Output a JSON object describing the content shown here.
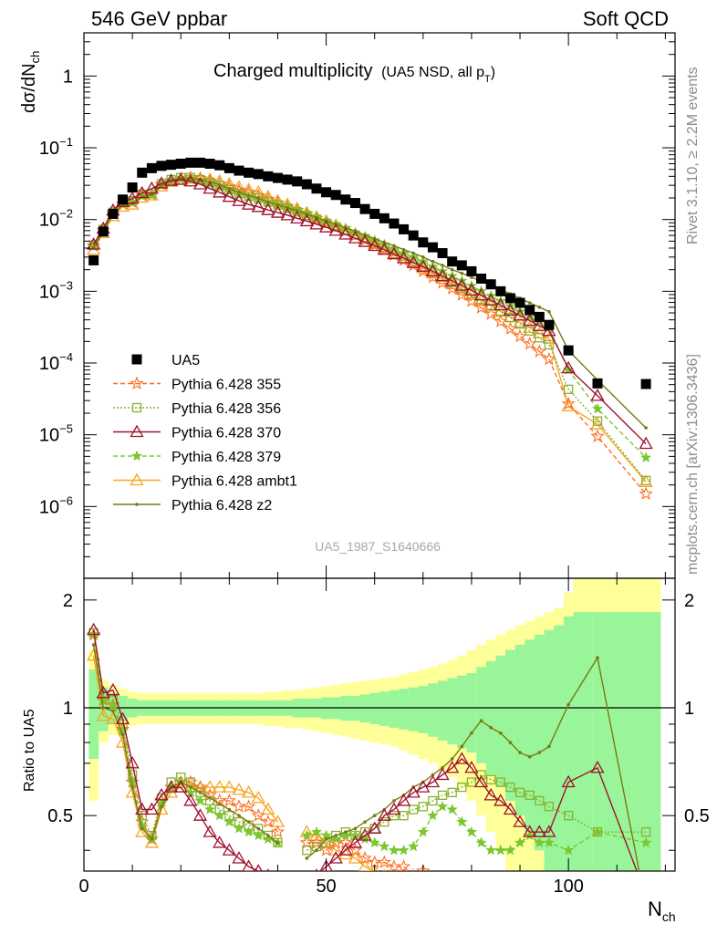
{
  "header": {
    "left": "546 GeV ppbar",
    "right": "Soft QCD",
    "side_top": "Rivet 3.1.10, ≥ 2.2M events",
    "side_bottom": "mcplots.cern.ch [arXiv:1306.3436]",
    "watermark": "UA5_1987_S1640666"
  },
  "title": {
    "main": "Charged multiplicity",
    "sub": "(UA5 NSD, all p",
    "sub_index": "T",
    "sub_close": ")"
  },
  "axes": {
    "ylabel_main": "dσ/dN",
    "ylabel_main_sub": "ch",
    "ylabel_ratio": "Ratio to UA5",
    "xlabel": "N",
    "xlabel_sub": "ch",
    "x_ticks": [
      "0",
      "50",
      "100"
    ],
    "y_ticks_main": [
      {
        "mant": "1",
        "exp": ""
      },
      {
        "mant": "10",
        "exp": "−1"
      },
      {
        "mant": "10",
        "exp": "−2"
      },
      {
        "mant": "10",
        "exp": "−3"
      },
      {
        "mant": "10",
        "exp": "−4"
      },
      {
        "mant": "10",
        "exp": "−5"
      },
      {
        "mant": "10",
        "exp": "−6"
      }
    ],
    "y_ticks_ratio": [
      "2",
      "1",
      "0.5"
    ]
  },
  "colors": {
    "data": "#000000",
    "p355": "#ff6d21",
    "p356": "#8ab030",
    "p370": "#a0112e",
    "p379": "#7ac72e",
    "ambt1": "#f5a623",
    "z2": "#7a7a12",
    "band_inner": "#99f599",
    "band_outer": "#ffff99"
  },
  "chart_data": {
    "type": "line",
    "x_range": [
      0,
      122
    ],
    "y_range_main": [
      1e-07,
      4
    ],
    "y_scale_main": "log",
    "y_range_ratio": [
      0.35,
      2.3
    ],
    "y_scale_ratio": "log",
    "legend": [
      {
        "key": "data",
        "label": "UA5"
      },
      {
        "key": "p355",
        "label": "Pythia 6.428 355"
      },
      {
        "key": "p356",
        "label": "Pythia 6.428 356"
      },
      {
        "key": "p370",
        "label": "Pythia 6.428 370"
      },
      {
        "key": "p379",
        "label": "Pythia 6.428 379"
      },
      {
        "key": "ambt1",
        "label": "Pythia 6.428 ambt1"
      },
      {
        "key": "z2",
        "label": "Pythia 6.428 z2"
      }
    ],
    "ua5": {
      "x": [
        2,
        4,
        6,
        8,
        10,
        12,
        14,
        16,
        18,
        20,
        22,
        24,
        26,
        28,
        30,
        32,
        34,
        36,
        38,
        40,
        42,
        44,
        46,
        48,
        50,
        52,
        54,
        56,
        58,
        60,
        62,
        64,
        66,
        68,
        70,
        72,
        74,
        76,
        78,
        80,
        82,
        84,
        86,
        88,
        90,
        92,
        94,
        96,
        100,
        106,
        116
      ],
      "y": [
        0.0027,
        0.0068,
        0.012,
        0.019,
        0.028,
        0.045,
        0.052,
        0.056,
        0.058,
        0.06,
        0.062,
        0.062,
        0.06,
        0.057,
        0.052,
        0.048,
        0.045,
        0.043,
        0.04,
        0.038,
        0.036,
        0.034,
        0.031,
        0.027,
        0.024,
        0.022,
        0.019,
        0.017,
        0.014,
        0.012,
        0.0104,
        0.0088,
        0.0073,
        0.006,
        0.0048,
        0.0041,
        0.0034,
        0.0026,
        0.0023,
        0.0019,
        0.0015,
        0.00125,
        0.001,
        0.0008,
        0.00069,
        0.00055,
        0.00044,
        0.00034,
        0.00015,
        5.2e-05,
        5.1e-05
      ]
    },
    "x_mc": [
      2,
      4,
      6,
      8,
      10,
      12,
      14,
      16,
      18,
      20,
      22,
      24,
      26,
      28,
      30,
      32,
      34,
      36,
      38,
      40,
      42,
      44,
      46,
      48,
      50,
      52,
      54,
      56,
      58,
      60,
      62,
      64,
      66,
      68,
      70,
      72,
      74,
      76,
      78,
      80,
      82,
      84,
      86,
      88,
      90,
      92,
      94,
      96,
      100,
      106,
      116
    ],
    "ratio_x": [
      2,
      4,
      6,
      8,
      10,
      12,
      14,
      16,
      18,
      20,
      22,
      24,
      26,
      28,
      30,
      32,
      34,
      36,
      38,
      40,
      46,
      48,
      50,
      52,
      54,
      56,
      58,
      60,
      62,
      64,
      66,
      68,
      70,
      72,
      74,
      76,
      78,
      80,
      82,
      84,
      86,
      88,
      90,
      92,
      94,
      96,
      100,
      106,
      116
    ],
    "series": {
      "p355": {
        "ratio": [
          1.6,
          1.05,
          1.02,
          0.87,
          0.62,
          0.48,
          0.43,
          0.55,
          0.6,
          0.62,
          0.62,
          0.6,
          0.57,
          0.55,
          0.55,
          0.53,
          0.53,
          0.5,
          0.48,
          0.45,
          0.42,
          0.42,
          0.4,
          0.42,
          0.42,
          0.4,
          0.38,
          0.37,
          0.37,
          0.36,
          0.36,
          0.34,
          0.35,
          0.33,
          0.33,
          0.32,
          0.31,
          0.3,
          0.3,
          0.29,
          0.28,
          0.27,
          0.27,
          0.26,
          0.25,
          0.24,
          0.22,
          0.2,
          0.18
        ],
        "y": [
          0.0043,
          0.0071,
          0.0122,
          0.0165,
          0.0174,
          0.0216,
          0.0224,
          0.0308,
          0.0348,
          0.0372,
          0.0384,
          0.0372,
          0.0342,
          0.0314,
          0.0286,
          0.0254,
          0.0239,
          0.0215,
          0.0192,
          0.0171,
          0.0151,
          0.0134,
          0.0118,
          0.0104,
          0.0091,
          0.008,
          0.0069,
          0.006,
          0.0052,
          0.0044,
          0.0038,
          0.0032,
          0.0027,
          0.0023,
          0.0019,
          0.00157,
          0.00131,
          0.00109,
          0.00089,
          0.00073,
          0.00059,
          0.00048,
          0.00038,
          0.0003,
          0.000235,
          0.000185,
          0.000145,
          0.000113,
          2.7e-05,
          9.5e-06,
          1.5e-06
        ]
      },
      "p356": {
        "ratio": [
          1.62,
          1.08,
          1.05,
          0.9,
          0.65,
          0.5,
          0.44,
          0.56,
          0.62,
          0.64,
          0.62,
          0.58,
          0.55,
          0.52,
          0.5,
          0.48,
          0.47,
          0.46,
          0.44,
          0.42,
          0.4,
          0.41,
          0.42,
          0.44,
          0.45,
          0.44,
          0.45,
          0.46,
          0.48,
          0.5,
          0.5,
          0.52,
          0.53,
          0.55,
          0.57,
          0.58,
          0.6,
          0.62,
          0.65,
          0.63,
          0.62,
          0.6,
          0.58,
          0.57,
          0.55,
          0.53,
          0.5,
          0.45,
          0.45
        ],
        "y": [
          0.0044,
          0.0073,
          0.0126,
          0.0171,
          0.0182,
          0.0225,
          0.0229,
          0.0314,
          0.036,
          0.0384,
          0.0384,
          0.036,
          0.033,
          0.0296,
          0.026,
          0.0231,
          0.0212,
          0.0198,
          0.0176,
          0.016,
          0.0144,
          0.0128,
          0.0114,
          0.0101,
          0.0089,
          0.0079,
          0.007,
          0.0061,
          0.0054,
          0.0047,
          0.0041,
          0.0036,
          0.0031,
          0.0026,
          0.0022,
          0.00186,
          0.00158,
          0.00133,
          0.00111,
          0.00093,
          0.00077,
          0.00064,
          0.00053,
          0.00043,
          0.00035,
          0.00028,
          0.000225,
          0.00018,
          4.3e-05,
          1.55e-05,
          2.3e-06
        ]
      },
      "p370": {
        "ratio": [
          1.65,
          1.1,
          1.12,
          0.93,
          0.7,
          0.52,
          0.52,
          0.57,
          0.6,
          0.6,
          0.55,
          0.5,
          0.45,
          0.42,
          0.4,
          0.38,
          0.36,
          0.35,
          0.34,
          0.33,
          0.33,
          0.34,
          0.36,
          0.38,
          0.4,
          0.42,
          0.44,
          0.46,
          0.5,
          0.52,
          0.55,
          0.58,
          0.6,
          0.62,
          0.65,
          0.68,
          0.72,
          0.68,
          0.62,
          0.57,
          0.55,
          0.52,
          0.48,
          0.45,
          0.45,
          0.45,
          0.62,
          0.68,
          0.3
        ],
        "y": [
          0.0045,
          0.0075,
          0.0134,
          0.0177,
          0.0196,
          0.0234,
          0.027,
          0.0319,
          0.0348,
          0.036,
          0.0341,
          0.031,
          0.027,
          0.0239,
          0.0208,
          0.0182,
          0.0162,
          0.015,
          0.0136,
          0.0125,
          0.0115,
          0.0104,
          0.0095,
          0.0086,
          0.0078,
          0.007,
          0.0062,
          0.0055,
          0.0049,
          0.0043,
          0.0038,
          0.0033,
          0.0029,
          0.0025,
          0.0022,
          0.0019,
          0.00163,
          0.0014,
          0.0012,
          0.00103,
          0.00088,
          0.00075,
          0.00064,
          0.00054,
          0.00046,
          0.00039,
          0.00033,
          0.00028,
          8.5e-05,
          3.5e-05,
          7.5e-06
        ]
      },
      "p379": {
        "ratio": [
          1.6,
          1.05,
          1.02,
          0.86,
          0.62,
          0.47,
          0.43,
          0.54,
          0.6,
          0.62,
          0.58,
          0.55,
          0.52,
          0.5,
          0.48,
          0.46,
          0.45,
          0.44,
          0.43,
          0.42,
          0.44,
          0.45,
          0.44,
          0.43,
          0.44,
          0.44,
          0.43,
          0.42,
          0.41,
          0.4,
          0.4,
          0.41,
          0.45,
          0.5,
          0.53,
          0.52,
          0.48,
          0.45,
          0.42,
          0.4,
          0.4,
          0.4,
          0.42,
          0.44,
          0.42,
          0.42,
          0.4,
          0.45,
          0.42
        ],
        "y": [
          0.0043,
          0.0071,
          0.0122,
          0.0163,
          0.0174,
          0.0212,
          0.0224,
          0.0302,
          0.0348,
          0.0372,
          0.036,
          0.0341,
          0.0312,
          0.0285,
          0.025,
          0.0221,
          0.0203,
          0.0189,
          0.0172,
          0.016,
          0.0147,
          0.0133,
          0.012,
          0.0107,
          0.0095,
          0.0085,
          0.0075,
          0.0066,
          0.0058,
          0.0051,
          0.0045,
          0.0039,
          0.0034,
          0.003,
          0.0026,
          0.0022,
          0.0019,
          0.00163,
          0.0014,
          0.00119,
          0.00101,
          0.00086,
          0.00073,
          0.00062,
          0.00052,
          0.00044,
          0.00037,
          0.00031,
          8e-05,
          2.3e-05,
          4.8e-06
        ]
      },
      "ambt1": {
        "ratio": [
          1.4,
          0.95,
          0.93,
          0.8,
          0.58,
          0.45,
          0.42,
          0.52,
          0.58,
          0.6,
          0.6,
          0.6,
          0.6,
          0.6,
          0.6,
          0.59,
          0.58,
          0.56,
          0.52,
          0.48,
          0.45,
          0.44,
          0.42,
          0.4,
          0.39,
          0.38,
          0.36,
          0.35,
          0.34,
          0.33,
          0.32,
          0.31,
          0.3,
          0.3,
          0.29,
          0.28,
          0.28,
          0.27,
          0.27,
          0.26,
          0.26,
          0.25,
          0.25,
          0.24,
          0.24,
          0.24,
          0.24,
          0.22,
          0.22
        ],
        "y": [
          0.0038,
          0.0065,
          0.0112,
          0.0152,
          0.0162,
          0.0203,
          0.0218,
          0.0291,
          0.0336,
          0.036,
          0.0372,
          0.0372,
          0.036,
          0.0342,
          0.0312,
          0.0283,
          0.0261,
          0.0241,
          0.0208,
          0.0182,
          0.0162,
          0.0142,
          0.0124,
          0.0108,
          0.0095,
          0.0083,
          0.0072,
          0.0062,
          0.0054,
          0.0046,
          0.004,
          0.0034,
          0.0029,
          0.0025,
          0.0021,
          0.00178,
          0.0015,
          0.00126,
          0.00106,
          0.00089,
          0.00075,
          0.00063,
          0.00052,
          0.00044,
          0.00037,
          0.00031,
          0.00026,
          0.00022,
          2.5e-05,
          1.4e-05,
          2.2e-06
        ]
      },
      "z2": {
        "ratio": [
          1.5,
          1.0,
          0.98,
          0.84,
          0.6,
          0.46,
          0.43,
          0.53,
          0.6,
          0.62,
          0.6,
          0.58,
          0.56,
          0.54,
          0.52,
          0.5,
          0.48,
          0.46,
          0.44,
          0.42,
          0.38,
          0.4,
          0.43,
          0.44,
          0.45,
          0.46,
          0.48,
          0.5,
          0.52,
          0.55,
          0.57,
          0.6,
          0.62,
          0.65,
          0.68,
          0.72,
          0.78,
          0.85,
          0.92,
          0.88,
          0.85,
          0.8,
          0.75,
          0.73,
          0.75,
          0.78,
          1.02,
          1.38,
          0.28
        ],
        "y": [
          0.0041,
          0.0068,
          0.0118,
          0.016,
          0.0168,
          0.0207,
          0.0224,
          0.0297,
          0.0348,
          0.0372,
          0.0372,
          0.036,
          0.0336,
          0.0308,
          0.027,
          0.024,
          0.0216,
          0.0198,
          0.0176,
          0.016,
          0.0146,
          0.0132,
          0.0119,
          0.0107,
          0.0096,
          0.0086,
          0.0077,
          0.0069,
          0.0061,
          0.0054,
          0.0048,
          0.0043,
          0.0038,
          0.0034,
          0.003,
          0.0026,
          0.0023,
          0.002,
          0.00178,
          0.00157,
          0.00138,
          0.00121,
          0.00106,
          0.00092,
          0.0008,
          0.00069,
          0.0006,
          0.00052,
          0.00015,
          5.8e-05,
          1.25e-05
        ]
      }
    },
    "uncertainty_band": {
      "x_edges": [
        1,
        3,
        5,
        7,
        9,
        11,
        13,
        15,
        17,
        19,
        21,
        23,
        25,
        27,
        29,
        31,
        33,
        35,
        37,
        39,
        41,
        43,
        45,
        47,
        49,
        51,
        53,
        55,
        57,
        59,
        61,
        63,
        65,
        67,
        69,
        71,
        73,
        75,
        77,
        79,
        81,
        83,
        85,
        87,
        89,
        91,
        93,
        95,
        97,
        99,
        101,
        103,
        105,
        107,
        109,
        111,
        113,
        115,
        117,
        119
      ],
      "inner": [
        0.28,
        0.14,
        0.1,
        0.08,
        0.06,
        0.05,
        0.05,
        0.05,
        0.05,
        0.05,
        0.05,
        0.05,
        0.05,
        0.05,
        0.05,
        0.05,
        0.05,
        0.05,
        0.05,
        0.05,
        0.05,
        0.06,
        0.06,
        0.06,
        0.07,
        0.07,
        0.08,
        0.08,
        0.09,
        0.1,
        0.11,
        0.12,
        0.13,
        0.14,
        0.15,
        0.17,
        0.19,
        0.21,
        0.23,
        0.25,
        0.3,
        0.35,
        0.4,
        0.45,
        0.5,
        0.55,
        0.6,
        0.65,
        0.7,
        0.8,
        0.85,
        0.85,
        0.85,
        0.85,
        0.85,
        0.85,
        0.85,
        0.85,
        0.85
      ],
      "outer": [
        0.45,
        0.2,
        0.16,
        0.13,
        0.11,
        0.1,
        0.1,
        0.1,
        0.1,
        0.1,
        0.1,
        0.1,
        0.1,
        0.1,
        0.1,
        0.1,
        0.1,
        0.1,
        0.11,
        0.11,
        0.12,
        0.12,
        0.13,
        0.14,
        0.15,
        0.16,
        0.17,
        0.18,
        0.19,
        0.2,
        0.21,
        0.22,
        0.24,
        0.26,
        0.28,
        0.3,
        0.33,
        0.36,
        0.4,
        0.45,
        0.5,
        0.55,
        0.6,
        0.65,
        0.7,
        0.75,
        0.8,
        0.85,
        0.9,
        1.1,
        1.3,
        1.5,
        1.5,
        1.5,
        1.5,
        1.5,
        1.5,
        1.5,
        1.5
      ]
    }
  }
}
